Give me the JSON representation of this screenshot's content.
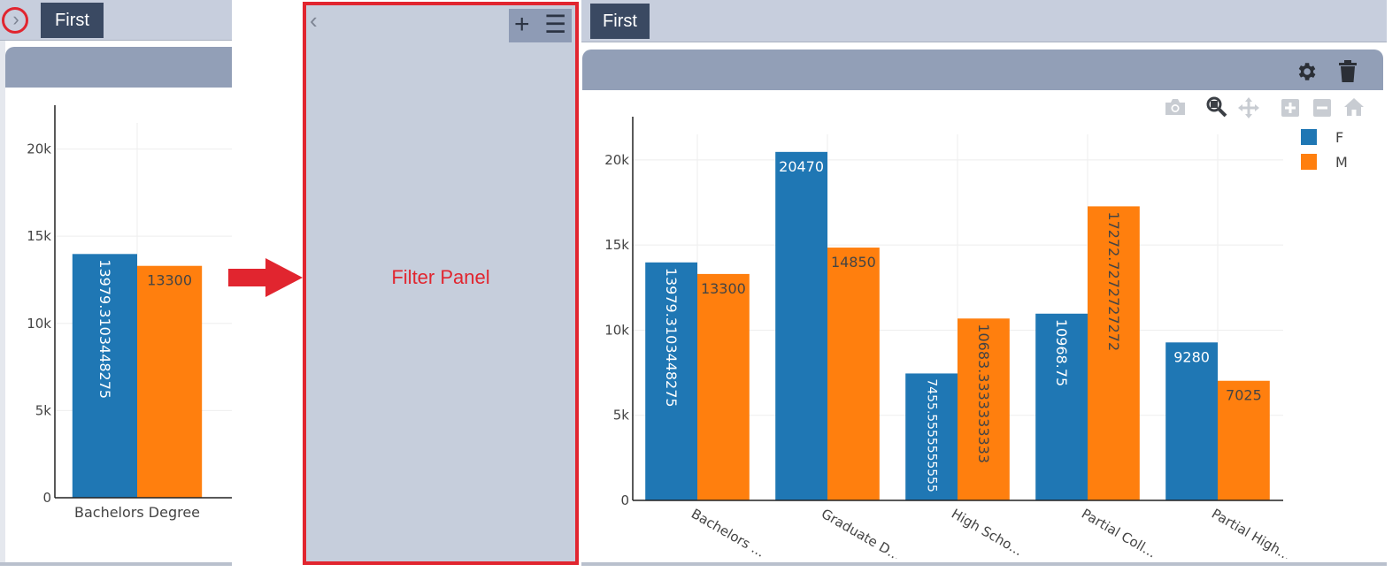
{
  "left_panel": {
    "tab_label": "First",
    "chart_data": {
      "type": "bar",
      "categories": [
        "Bachelors Degree"
      ],
      "series": [
        {
          "name": "F",
          "values": [
            13979.3103448275
          ],
          "labels": [
            "13979.3103448275"
          ]
        },
        {
          "name": "M",
          "values": [
            13300
          ],
          "labels": [
            "13300"
          ]
        }
      ],
      "ylim": [
        0,
        21500
      ],
      "yticks": [
        0,
        5000,
        10000,
        15000,
        20000
      ],
      "ytick_labels": [
        "0",
        "5k",
        "10k",
        "15k",
        "20k"
      ],
      "grid": true
    }
  },
  "filter_panel": {
    "label": "Filter Panel"
  },
  "right_panel": {
    "tab_label": "First",
    "chart_data": {
      "type": "bar",
      "categories": [
        "Bachelors Degree",
        "Graduate Degree",
        "High School",
        "Partial College",
        "Partial High School"
      ],
      "x_tick_labels_visible": [
        "Bachelors ...",
        "Graduate D...",
        "High Scho...",
        "Partial Coll...",
        "Partial High..."
      ],
      "series": [
        {
          "name": "F",
          "values": [
            13979.3103448275,
            20470,
            7455.5555555555,
            10968.75,
            9280
          ],
          "labels": [
            "13979.3103448275",
            "20470",
            "7455.5555555555",
            "10968.75",
            "9280"
          ]
        },
        {
          "name": "M",
          "values": [
            13300,
            14850,
            10683.3333333333,
            17272.7272727272,
            7025
          ],
          "labels": [
            "13300",
            "14850",
            "10683.3333333333",
            "17272.7272727272",
            "7025"
          ]
        }
      ],
      "ylim": [
        0,
        21500
      ],
      "yticks": [
        0,
        5000,
        10000,
        15000,
        20000
      ],
      "ytick_labels": [
        "0",
        "5k",
        "10k",
        "15k",
        "20k"
      ],
      "legend_position": "top-right",
      "grid": true
    }
  },
  "colors": {
    "series_f": "#1f77b4",
    "series_m": "#ff7f0e",
    "accent_red": "#e1252f",
    "tab_bg": "#3a4962"
  },
  "icons": [
    "chevron-right-icon",
    "chevron-left-icon",
    "plus-icon",
    "menu-icon",
    "gear-icon",
    "trash-icon",
    "camera-icon",
    "zoom-icon",
    "pan-icon",
    "zoom-in-icon",
    "zoom-out-icon",
    "home-icon",
    "arrow-right-icon"
  ]
}
